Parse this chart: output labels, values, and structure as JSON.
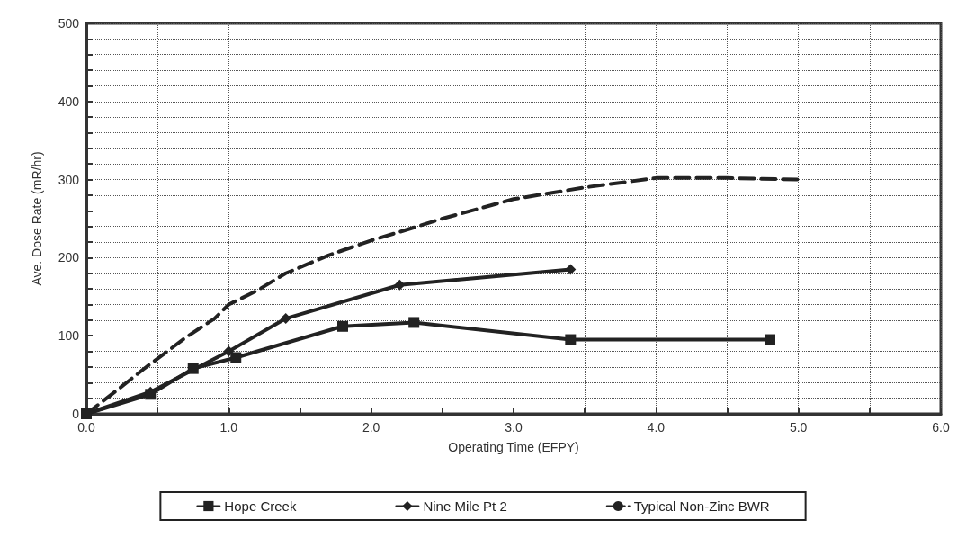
{
  "chart_data": {
    "type": "line",
    "xlabel": "Operating Time (EFPY)",
    "ylabel": "Ave. Dose Rate (mR/hr)",
    "xlim": [
      0,
      6
    ],
    "ylim": [
      0,
      500
    ],
    "xticks": [
      {
        "value": 0,
        "label": "0.0"
      },
      {
        "value": 0.5,
        "label": null
      },
      {
        "value": 1,
        "label": "1.0"
      },
      {
        "value": 1.5,
        "label": null
      },
      {
        "value": 2,
        "label": "2.0"
      },
      {
        "value": 2.5,
        "label": null
      },
      {
        "value": 3,
        "label": "3.0"
      },
      {
        "value": 3.5,
        "label": null
      },
      {
        "value": 4,
        "label": "4.0"
      },
      {
        "value": 4.5,
        "label": null
      },
      {
        "value": 5,
        "label": "5.0"
      },
      {
        "value": 5.5,
        "label": null
      },
      {
        "value": 6,
        "label": "6.0"
      }
    ],
    "yticks": [
      0,
      {
        "value": 20,
        "label": null
      },
      {
        "value": 40,
        "label": null
      },
      {
        "value": 60,
        "label": null
      },
      {
        "value": 80,
        "label": null
      },
      100,
      {
        "value": 120,
        "label": null
      },
      {
        "value": 140,
        "label": null
      },
      {
        "value": 160,
        "label": null
      },
      {
        "value": 180,
        "label": null
      },
      200,
      {
        "value": 220,
        "label": null
      },
      {
        "value": 240,
        "label": null
      },
      {
        "value": 260,
        "label": null
      },
      {
        "value": 280,
        "label": null
      },
      300,
      {
        "value": 320,
        "label": null
      },
      {
        "value": 340,
        "label": null
      },
      {
        "value": 360,
        "label": null
      },
      {
        "value": 380,
        "label": null
      },
      400,
      {
        "value": 420,
        "label": null
      },
      {
        "value": 440,
        "label": null
      },
      {
        "value": 460,
        "label": null
      },
      {
        "value": 480,
        "label": null
      },
      500
    ],
    "grid": true,
    "legend": "bottom",
    "series": [
      {
        "name": "Hope Creek",
        "color": "#222222",
        "marker": "square",
        "line_style": "solid",
        "x": [
          0,
          0.45,
          0.75,
          1.05,
          1.8,
          2.3,
          3.4,
          4.8
        ],
        "values": [
          0,
          25,
          58,
          72,
          112,
          117,
          95,
          95
        ]
      },
      {
        "name": "Nine Mile Pt 2",
        "color": "#222222",
        "marker": "diamond",
        "line_style": "solid",
        "x": [
          0,
          0.45,
          1.0,
          1.4,
          2.2,
          3.4
        ],
        "values": [
          0,
          28,
          80,
          122,
          165,
          185
        ]
      },
      {
        "name": "Typical Non-Zinc BWR",
        "color": "#222222",
        "marker": "none",
        "line_style": "dashed",
        "x": [
          0,
          0.2,
          0.4,
          0.7,
          0.9,
          1.0,
          1.2,
          1.4,
          1.7,
          2.0,
          2.2,
          2.5,
          2.8,
          3.0,
          3.5,
          4.0,
          4.5,
          5.0
        ],
        "values": [
          0,
          28,
          57,
          98,
          122,
          140,
          158,
          180,
          203,
          222,
          233,
          250,
          265,
          275,
          290,
          302,
          302,
          300
        ]
      }
    ]
  }
}
